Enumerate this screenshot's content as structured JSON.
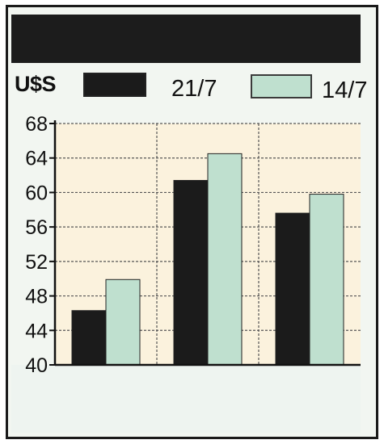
{
  "legend": {
    "unit": "U$S",
    "series_a_label": "21/7",
    "series_b_label": "14/7"
  },
  "colors": {
    "series_a": "#1b1b1b",
    "series_b": "#bfe0cf",
    "plot_background": "#fbf2dd",
    "grid": "#555555",
    "title_bar": "#1c1c1c"
  },
  "chart_data": {
    "type": "bar",
    "title": "",
    "xlabel": "",
    "ylabel": "U$S",
    "ylim": [
      40,
      68
    ],
    "yticks": [
      40,
      44,
      48,
      52,
      56,
      60,
      64,
      68
    ],
    "grid": true,
    "legend_position": "top",
    "categories": [
      "",
      "",
      ""
    ],
    "series": [
      {
        "name": "21/7",
        "values": [
          46.3,
          61.4,
          57.6
        ]
      },
      {
        "name": "14/7",
        "values": [
          49.9,
          64.5,
          59.8
        ]
      }
    ]
  }
}
